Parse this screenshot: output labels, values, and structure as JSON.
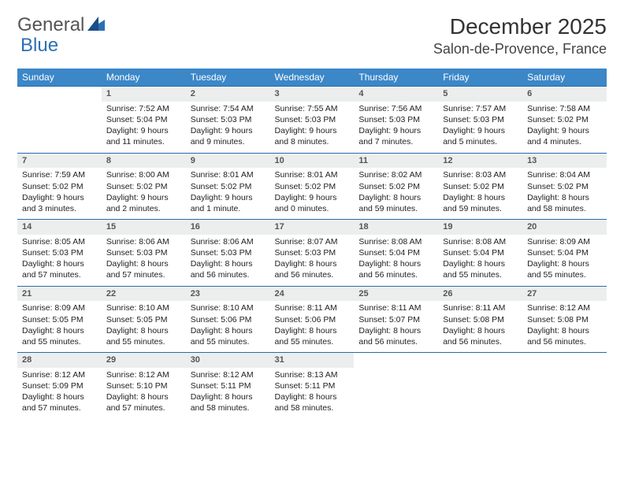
{
  "brand": {
    "part1": "General",
    "part2": "Blue"
  },
  "title": "December 2025",
  "location": "Salon-de-Provence, France",
  "colors": {
    "header_bg": "#3b87c8",
    "header_text": "#ffffff",
    "daynum_bg": "#eceeee",
    "rule": "#2a6aa8",
    "logo_gray": "#555555",
    "logo_blue": "#2d6fb3"
  },
  "weekdays": [
    "Sunday",
    "Monday",
    "Tuesday",
    "Wednesday",
    "Thursday",
    "Friday",
    "Saturday"
  ],
  "weeks": [
    {
      "nums": [
        "",
        "1",
        "2",
        "3",
        "4",
        "5",
        "6"
      ],
      "cells": [
        null,
        {
          "sr": "Sunrise: 7:52 AM",
          "ss": "Sunset: 5:04 PM",
          "dl": "Daylight: 9 hours and 11 minutes."
        },
        {
          "sr": "Sunrise: 7:54 AM",
          "ss": "Sunset: 5:03 PM",
          "dl": "Daylight: 9 hours and 9 minutes."
        },
        {
          "sr": "Sunrise: 7:55 AM",
          "ss": "Sunset: 5:03 PM",
          "dl": "Daylight: 9 hours and 8 minutes."
        },
        {
          "sr": "Sunrise: 7:56 AM",
          "ss": "Sunset: 5:03 PM",
          "dl": "Daylight: 9 hours and 7 minutes."
        },
        {
          "sr": "Sunrise: 7:57 AM",
          "ss": "Sunset: 5:03 PM",
          "dl": "Daylight: 9 hours and 5 minutes."
        },
        {
          "sr": "Sunrise: 7:58 AM",
          "ss": "Sunset: 5:02 PM",
          "dl": "Daylight: 9 hours and 4 minutes."
        }
      ]
    },
    {
      "nums": [
        "7",
        "8",
        "9",
        "10",
        "11",
        "12",
        "13"
      ],
      "cells": [
        {
          "sr": "Sunrise: 7:59 AM",
          "ss": "Sunset: 5:02 PM",
          "dl": "Daylight: 9 hours and 3 minutes."
        },
        {
          "sr": "Sunrise: 8:00 AM",
          "ss": "Sunset: 5:02 PM",
          "dl": "Daylight: 9 hours and 2 minutes."
        },
        {
          "sr": "Sunrise: 8:01 AM",
          "ss": "Sunset: 5:02 PM",
          "dl": "Daylight: 9 hours and 1 minute."
        },
        {
          "sr": "Sunrise: 8:01 AM",
          "ss": "Sunset: 5:02 PM",
          "dl": "Daylight: 9 hours and 0 minutes."
        },
        {
          "sr": "Sunrise: 8:02 AM",
          "ss": "Sunset: 5:02 PM",
          "dl": "Daylight: 8 hours and 59 minutes."
        },
        {
          "sr": "Sunrise: 8:03 AM",
          "ss": "Sunset: 5:02 PM",
          "dl": "Daylight: 8 hours and 59 minutes."
        },
        {
          "sr": "Sunrise: 8:04 AM",
          "ss": "Sunset: 5:02 PM",
          "dl": "Daylight: 8 hours and 58 minutes."
        }
      ]
    },
    {
      "nums": [
        "14",
        "15",
        "16",
        "17",
        "18",
        "19",
        "20"
      ],
      "cells": [
        {
          "sr": "Sunrise: 8:05 AM",
          "ss": "Sunset: 5:03 PM",
          "dl": "Daylight: 8 hours and 57 minutes."
        },
        {
          "sr": "Sunrise: 8:06 AM",
          "ss": "Sunset: 5:03 PM",
          "dl": "Daylight: 8 hours and 57 minutes."
        },
        {
          "sr": "Sunrise: 8:06 AM",
          "ss": "Sunset: 5:03 PM",
          "dl": "Daylight: 8 hours and 56 minutes."
        },
        {
          "sr": "Sunrise: 8:07 AM",
          "ss": "Sunset: 5:03 PM",
          "dl": "Daylight: 8 hours and 56 minutes."
        },
        {
          "sr": "Sunrise: 8:08 AM",
          "ss": "Sunset: 5:04 PM",
          "dl": "Daylight: 8 hours and 56 minutes."
        },
        {
          "sr": "Sunrise: 8:08 AM",
          "ss": "Sunset: 5:04 PM",
          "dl": "Daylight: 8 hours and 55 minutes."
        },
        {
          "sr": "Sunrise: 8:09 AM",
          "ss": "Sunset: 5:04 PM",
          "dl": "Daylight: 8 hours and 55 minutes."
        }
      ]
    },
    {
      "nums": [
        "21",
        "22",
        "23",
        "24",
        "25",
        "26",
        "27"
      ],
      "cells": [
        {
          "sr": "Sunrise: 8:09 AM",
          "ss": "Sunset: 5:05 PM",
          "dl": "Daylight: 8 hours and 55 minutes."
        },
        {
          "sr": "Sunrise: 8:10 AM",
          "ss": "Sunset: 5:05 PM",
          "dl": "Daylight: 8 hours and 55 minutes."
        },
        {
          "sr": "Sunrise: 8:10 AM",
          "ss": "Sunset: 5:06 PM",
          "dl": "Daylight: 8 hours and 55 minutes."
        },
        {
          "sr": "Sunrise: 8:11 AM",
          "ss": "Sunset: 5:06 PM",
          "dl": "Daylight: 8 hours and 55 minutes."
        },
        {
          "sr": "Sunrise: 8:11 AM",
          "ss": "Sunset: 5:07 PM",
          "dl": "Daylight: 8 hours and 56 minutes."
        },
        {
          "sr": "Sunrise: 8:11 AM",
          "ss": "Sunset: 5:08 PM",
          "dl": "Daylight: 8 hours and 56 minutes."
        },
        {
          "sr": "Sunrise: 8:12 AM",
          "ss": "Sunset: 5:08 PM",
          "dl": "Daylight: 8 hours and 56 minutes."
        }
      ]
    },
    {
      "nums": [
        "28",
        "29",
        "30",
        "31",
        "",
        "",
        ""
      ],
      "cells": [
        {
          "sr": "Sunrise: 8:12 AM",
          "ss": "Sunset: 5:09 PM",
          "dl": "Daylight: 8 hours and 57 minutes."
        },
        {
          "sr": "Sunrise: 8:12 AM",
          "ss": "Sunset: 5:10 PM",
          "dl": "Daylight: 8 hours and 57 minutes."
        },
        {
          "sr": "Sunrise: 8:12 AM",
          "ss": "Sunset: 5:11 PM",
          "dl": "Daylight: 8 hours and 58 minutes."
        },
        {
          "sr": "Sunrise: 8:13 AM",
          "ss": "Sunset: 5:11 PM",
          "dl": "Daylight: 8 hours and 58 minutes."
        },
        null,
        null,
        null
      ]
    }
  ]
}
